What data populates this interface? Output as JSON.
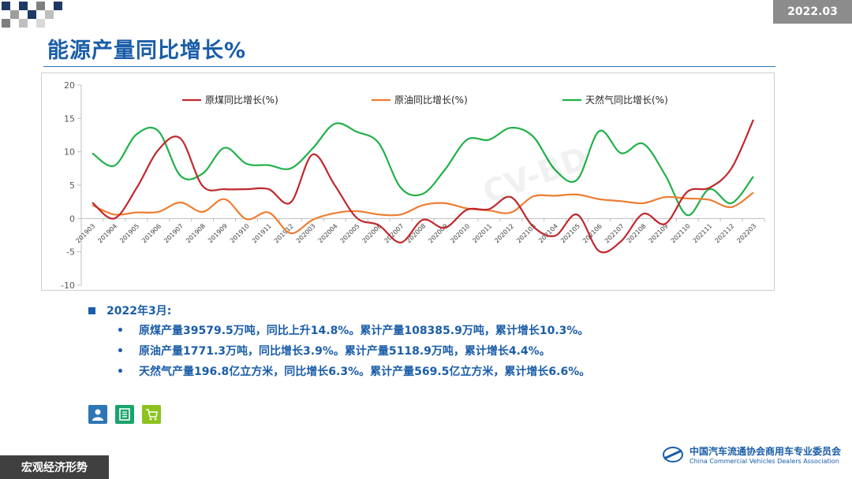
{
  "header": {
    "date": "2022.03",
    "title": "能源产量同比增长%"
  },
  "theme": {
    "accent": "#1a5da8",
    "coal_color": "#c0282d",
    "oil_color": "#ed7d31",
    "gas_color": "#21b14a"
  },
  "chart_data": {
    "type": "line",
    "categories": [
      "201903",
      "201904",
      "201905",
      "201906",
      "201907",
      "201908",
      "201909",
      "201910",
      "201911",
      "201912",
      "202003",
      "202004",
      "202005",
      "202006",
      "202007",
      "202008",
      "202009",
      "202010",
      "202011",
      "202012",
      "202103",
      "202104",
      "202105",
      "202106",
      "202107",
      "202108",
      "202109",
      "202110",
      "202111",
      "202112",
      "202203"
    ],
    "series": [
      {
        "name": "原煤同比增长(%)",
        "values": [
          2.4,
          0.0,
          4.5,
          10.3,
          12.0,
          4.9,
          4.4,
          4.4,
          4.4,
          2.4,
          9.6,
          5.0,
          0.1,
          -1.0,
          -3.6,
          -0.2,
          -1.4,
          1.3,
          1.4,
          3.2,
          -1.2,
          -2.6,
          0.6,
          -4.9,
          -3.4,
          0.7,
          -0.8,
          4.0,
          4.6,
          7.5,
          14.8
        ]
      },
      {
        "name": "原油同比增长(%)",
        "values": [
          2.0,
          0.6,
          0.9,
          1.0,
          2.4,
          1.0,
          2.9,
          -0.1,
          0.9,
          -2.2,
          -0.2,
          0.8,
          1.1,
          0.6,
          0.6,
          2.0,
          2.3,
          1.5,
          1.2,
          0.9,
          3.3,
          3.4,
          3.6,
          2.9,
          2.6,
          2.3,
          3.2,
          3.0,
          2.8,
          1.7,
          3.9
        ]
      },
      {
        "name": "天然气同比增长(%)",
        "values": [
          9.8,
          7.9,
          12.6,
          13.1,
          6.4,
          6.7,
          10.6,
          8.2,
          8.0,
          7.5,
          10.5,
          14.2,
          13.0,
          11.3,
          4.6,
          3.7,
          7.3,
          11.8,
          11.8,
          13.6,
          12.3,
          7.3,
          5.8,
          13.1,
          9.8,
          11.2,
          6.5,
          0.5,
          4.4,
          2.3,
          6.3
        ]
      }
    ],
    "ylim": [
      -10,
      20
    ],
    "yticks": [
      20,
      15,
      10,
      5,
      0,
      -5,
      -10
    ],
    "legend_position": "top",
    "grid": false
  },
  "summary": {
    "heading": "2022年3月:",
    "items": [
      "原煤产量39579.5万吨，同比上升14.8%。累计产量108385.9万吨，累计增长10.3%。",
      "原油产量1771.3万吨，同比增长3.9%。累计产量5118.9万吨，累计增长4.4%。",
      "天然气产量196.8亿立方米，同比增长6.3%。累计产量569.5亿立方米，累计增长6.6%。"
    ],
    "bullet": "•"
  },
  "footer": {
    "section_label": "宏观经济形势",
    "org_cn": "中国汽车流通协会商用车专业委员会",
    "org_en": "China Commercial Vehicles Dealers Association"
  },
  "icons": [
    "service-person-icon",
    "document-list-icon",
    "cart-icon"
  ]
}
